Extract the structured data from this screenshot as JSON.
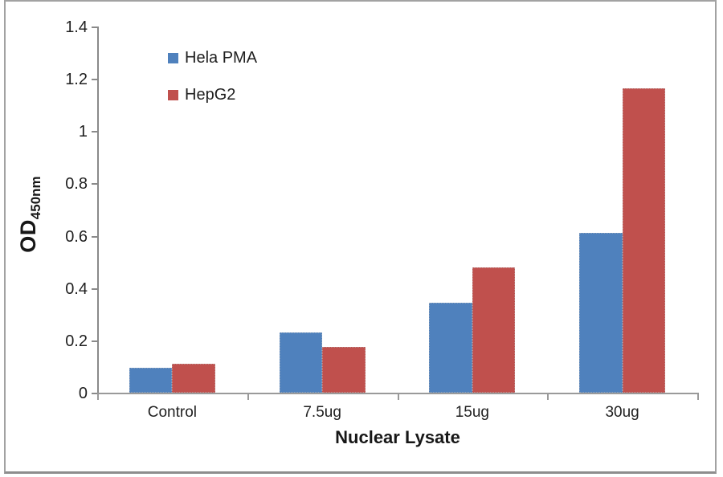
{
  "chart_data": {
    "type": "bar",
    "categories": [
      "Control",
      "7.5ug",
      "15ug",
      "30ug"
    ],
    "series": [
      {
        "name": "Hela PMA",
        "color": "#4F81BD",
        "values": [
          0.095,
          0.23,
          0.345,
          0.61
        ]
      },
      {
        "name": "HepG2",
        "color": "#C0504D",
        "values": [
          0.11,
          0.175,
          0.48,
          1.165
        ]
      }
    ],
    "title": "",
    "xlabel": "Nuclear Lysate",
    "ylabel": "OD",
    "ylabel_subscript": "450nm",
    "ylim": [
      0,
      1.4
    ],
    "ytick_step": 0.2,
    "ytick_labels": [
      "0",
      "0.2",
      "0.4",
      "0.6",
      "0.8",
      "1",
      "1.2",
      "1.4"
    ],
    "grid": false,
    "legend_position": "upper-left-inside",
    "axis_color": "#8a8a8a",
    "text_color": "#1f1f1f"
  }
}
